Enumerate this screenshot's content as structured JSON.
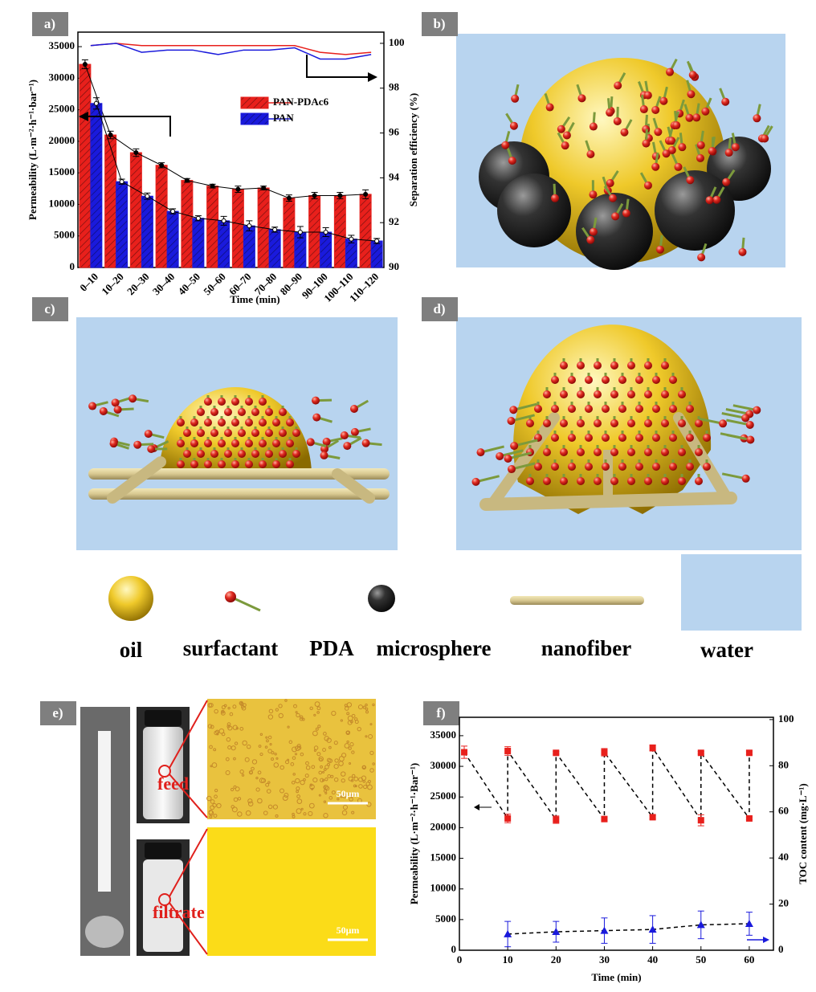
{
  "panel_labels": [
    "a)",
    "b)",
    "c)",
    "d)",
    "e)",
    "f)"
  ],
  "key": [
    "oil",
    "surfactant",
    "PDA",
    "microsphere",
    "nanofiber",
    "water"
  ],
  "photo_labels": [
    "feed",
    "filtrate"
  ],
  "scale_bars": [
    "50μm",
    "50μm"
  ],
  "chart_data": [
    {
      "type": "bar",
      "x_label": "Time (min)",
      "y_label": "Permeability (L·m⁻²·h⁻¹·bar⁻¹)",
      "y2_label": "Separation efficiency (%)",
      "categories": [
        "0–10",
        "10–20",
        "20–30",
        "30–40",
        "40–50",
        "50–60",
        "60–70",
        "70–80",
        "80–90",
        "90–100",
        "100–110",
        "110–120"
      ],
      "series": [
        {
          "name": "PAN-PDAc6",
          "color": "#e8201c",
          "values": [
            32200,
            21000,
            18200,
            16200,
            13800,
            12900,
            12400,
            12600,
            11000,
            11400,
            11400,
            11600
          ],
          "errors": [
            700,
            600,
            600,
            400,
            300,
            300,
            500,
            300,
            500,
            500,
            500,
            700
          ],
          "efficiency": [
            99.9,
            100,
            99.9,
            99.9,
            99.9,
            99.9,
            99.9,
            99.9,
            99.9,
            99.6,
            99.5,
            99.6
          ]
        },
        {
          "name": "PAN",
          "color": "#1a1adc",
          "values": [
            26000,
            13600,
            11300,
            8900,
            7800,
            7400,
            6600,
            6000,
            5600,
            5600,
            4500,
            4200
          ],
          "errors": [
            900,
            400,
            500,
            400,
            400,
            700,
            800,
            400,
            900,
            700,
            600,
            400
          ],
          "efficiency": [
            99.9,
            100,
            99.6,
            99.7,
            99.7,
            99.5,
            99.7,
            99.7,
            99.8,
            99.3,
            99.3,
            99.5
          ]
        }
      ],
      "ylim": [
        0,
        37300
      ],
      "yticks": [
        0,
        5000,
        10000,
        15000,
        20000,
        25000,
        30000,
        35000
      ],
      "y2lim": [
        90,
        100.5
      ],
      "y2ticks": [
        90,
        92,
        94,
        96,
        98,
        100
      ],
      "legend": "upper right"
    },
    {
      "type": "line",
      "x_label": "Time (min)",
      "y_label": "Permeability (L·m⁻²·h⁻¹·Bar⁻¹)",
      "y2_label": "TOC content (mg·L⁻¹)",
      "series": [
        {
          "color": "#e8201c",
          "marker": "square",
          "x": [
            1,
            10,
            10,
            20,
            20,
            30,
            30,
            40,
            40,
            50,
            50,
            60,
            60
          ],
          "values": [
            32300,
            21500,
            32500,
            21300,
            32200,
            21400,
            32300,
            21700,
            33000,
            21200,
            32200,
            21500,
            32200
          ],
          "errors": [
            1000,
            700,
            700,
            600,
            200,
            300,
            600,
            300,
            500,
            900,
            200,
            200,
            300
          ]
        },
        {
          "color": "#1a1adc",
          "marker": "triangle",
          "axis": "y2",
          "x": [
            10,
            20,
            30,
            40,
            50,
            60
          ],
          "values": [
            7,
            8,
            8.5,
            9,
            11,
            11.5
          ],
          "errors": [
            5.5,
            4.5,
            5.5,
            6,
            6,
            5
          ]
        }
      ],
      "xlim": [
        0,
        65
      ],
      "xticks": [
        0,
        10,
        20,
        30,
        40,
        50,
        60
      ],
      "ylim": [
        0,
        38000
      ],
      "yticks": [
        0,
        5000,
        10000,
        15000,
        20000,
        25000,
        30000,
        35000
      ],
      "y2lim": [
        0,
        101
      ],
      "y2ticks": [
        0,
        20,
        40,
        60,
        80,
        100
      ]
    }
  ]
}
